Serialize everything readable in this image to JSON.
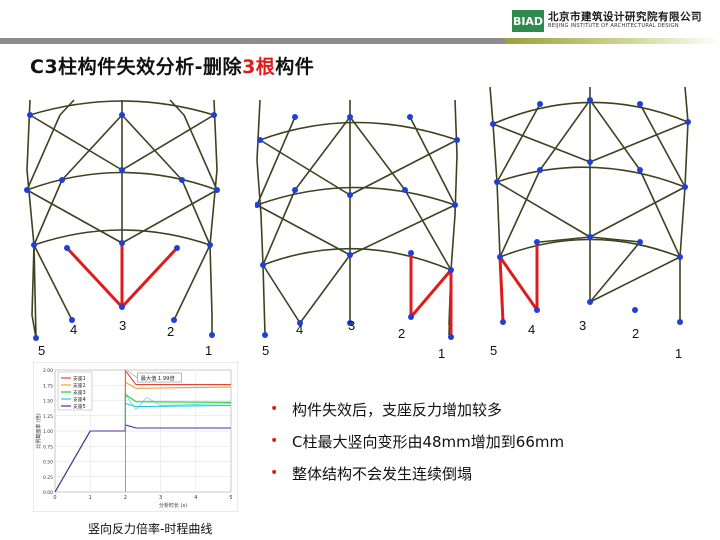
{
  "header": {
    "logo_mark": "BIAD",
    "logo_cn": "北京市建筑设计研究院有限公司",
    "logo_en": "BEIJING INSTITUTE OF ARCHITECTURAL DESIGN"
  },
  "title": {
    "prefix": "C3柱构件失效分析-删除",
    "highlight": "3根",
    "suffix": "构件"
  },
  "panels": [
    {
      "labels": [
        "5",
        "4",
        "3",
        "2",
        "1"
      ]
    },
    {
      "labels": [
        "5",
        "4",
        "3",
        "2",
        "1"
      ]
    },
    {
      "labels": [
        "5",
        "4",
        "3",
        "2",
        "1"
      ]
    }
  ],
  "chart_data": {
    "type": "line",
    "xlabel": "分析时长 (s)",
    "ylabel": "比例截面率 (倍)",
    "xticks": [
      "0",
      "1",
      "2",
      "3",
      "4",
      "5"
    ],
    "yticks": [
      "0.00",
      "0.25",
      "0.50",
      "0.75",
      "1.00",
      "1.25",
      "1.50",
      "1.75",
      "2.00"
    ],
    "xlim": [
      0,
      5
    ],
    "ylim": [
      0,
      2.0
    ],
    "annotation": "最大值 1.99倍",
    "series": [
      {
        "name": "支座1",
        "color": "#e0453a",
        "values": [
          [
            0,
            0
          ],
          [
            1,
            1
          ],
          [
            2,
            1
          ],
          [
            2,
            1.99
          ],
          [
            2.3,
            1.76
          ],
          [
            5,
            1.76
          ]
        ]
      },
      {
        "name": "支座2",
        "color": "#f0a030",
        "values": [
          [
            0,
            0
          ],
          [
            1,
            1
          ],
          [
            2,
            1
          ],
          [
            2,
            1.8
          ],
          [
            2.3,
            1.7
          ],
          [
            5,
            1.72
          ]
        ]
      },
      {
        "name": "支座3",
        "color": "#22cc33",
        "values": [
          [
            0,
            0
          ],
          [
            1,
            1
          ],
          [
            2,
            1
          ],
          [
            2,
            1.6
          ],
          [
            2.3,
            1.48
          ],
          [
            5,
            1.47
          ]
        ]
      },
      {
        "name": "支座4",
        "color": "#22c8e0",
        "values": [
          [
            0,
            0
          ],
          [
            1,
            1
          ],
          [
            2,
            1
          ],
          [
            2,
            1.45
          ],
          [
            2.3,
            1.4
          ],
          [
            5,
            1.42
          ]
        ]
      },
      {
        "name": "支座5",
        "color": "#5a2aa0",
        "values": [
          [
            0,
            0
          ],
          [
            1,
            1
          ],
          [
            2,
            1
          ],
          [
            2,
            1.1
          ],
          [
            2.3,
            1.05
          ],
          [
            5,
            1.05
          ]
        ]
      }
    ]
  },
  "caption": "竖向反力倍率-时程曲线",
  "bullets": [
    "构件失效后，支座反力增加较多",
    "C柱最大竖向变形由48mm增加到66mm",
    "整体结构不会发生连续倒塌"
  ],
  "colors": {
    "member": "#3d4220",
    "node": "#1f3fd8",
    "removed": "#e01b1b",
    "accent": "#e01b1b"
  }
}
